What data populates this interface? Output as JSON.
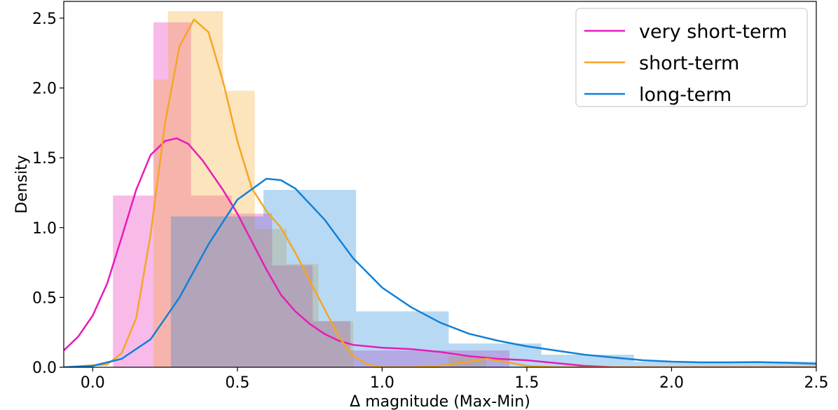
{
  "chart_data": {
    "type": "histogram-kde",
    "xlabel": "Δ magnitude (Max-Min)",
    "ylabel": "Density",
    "xlim": [
      -0.1,
      2.5
    ],
    "ylim": [
      0.0,
      2.62
    ],
    "x_ticks": [
      0.0,
      0.5,
      1.0,
      1.5,
      2.0,
      2.5
    ],
    "y_ticks": [
      0.0,
      0.5,
      1.0,
      1.5,
      2.0,
      2.5
    ],
    "x_tick_labels": [
      "0.0",
      "0.5",
      "1.0",
      "1.5",
      "2.0",
      "2.5"
    ],
    "y_tick_labels": [
      "0.0",
      "0.5",
      "1.0",
      "1.5",
      "2.0",
      "2.5"
    ],
    "grid": false,
    "legend_position": "top-right",
    "series": [
      {
        "name": "very short-term",
        "color": "#e81cb7",
        "hist": [
          {
            "x0": 0.07,
            "x1": 0.21,
            "density": 1.23
          },
          {
            "x0": 0.21,
            "x1": 0.34,
            "density": 2.47
          },
          {
            "x0": 0.34,
            "x1": 0.48,
            "density": 1.23
          },
          {
            "x0": 0.48,
            "x1": 0.62,
            "density": 1.1
          },
          {
            "x0": 0.62,
            "x1": 0.76,
            "density": 0.73
          },
          {
            "x0": 0.76,
            "x1": 0.89,
            "density": 0.33
          },
          {
            "x0": 0.89,
            "x1": 1.03,
            "density": 0.12
          },
          {
            "x0": 1.03,
            "x1": 1.17,
            "density": 0.12
          },
          {
            "x0": 1.17,
            "x1": 1.3,
            "density": 0.12
          },
          {
            "x0": 1.3,
            "x1": 1.44,
            "density": 0.12
          }
        ],
        "kde": [
          [
            -0.1,
            0.12
          ],
          [
            -0.05,
            0.22
          ],
          [
            0.0,
            0.37
          ],
          [
            0.05,
            0.6
          ],
          [
            0.1,
            0.93
          ],
          [
            0.15,
            1.27
          ],
          [
            0.2,
            1.52
          ],
          [
            0.25,
            1.62
          ],
          [
            0.29,
            1.64
          ],
          [
            0.33,
            1.6
          ],
          [
            0.38,
            1.48
          ],
          [
            0.45,
            1.27
          ],
          [
            0.5,
            1.1
          ],
          [
            0.55,
            0.9
          ],
          [
            0.6,
            0.7
          ],
          [
            0.65,
            0.52
          ],
          [
            0.7,
            0.4
          ],
          [
            0.75,
            0.31
          ],
          [
            0.8,
            0.24
          ],
          [
            0.85,
            0.19
          ],
          [
            0.9,
            0.16
          ],
          [
            1.0,
            0.14
          ],
          [
            1.1,
            0.13
          ],
          [
            1.2,
            0.11
          ],
          [
            1.3,
            0.08
          ],
          [
            1.4,
            0.06
          ],
          [
            1.5,
            0.05
          ],
          [
            1.6,
            0.03
          ],
          [
            1.7,
            0.01
          ],
          [
            1.8,
            0.0
          ],
          [
            1.9,
            0.0
          ],
          [
            2.5,
            0.0
          ]
        ]
      },
      {
        "name": "short-term",
        "color": "#f5a623",
        "hist": [
          {
            "x0": 0.21,
            "x1": 0.26,
            "density": 2.06
          },
          {
            "x0": 0.26,
            "x1": 0.45,
            "density": 2.55
          },
          {
            "x0": 0.45,
            "x1": 0.56,
            "density": 1.98
          },
          {
            "x0": 0.56,
            "x1": 0.67,
            "density": 0.99
          },
          {
            "x0": 0.67,
            "x1": 0.78,
            "density": 0.74
          },
          {
            "x0": 0.78,
            "x1": 0.9,
            "density": 0.33
          },
          {
            "x0": 1.23,
            "x1": 1.36,
            "density": 0.08
          }
        ],
        "kde": [
          [
            -0.1,
            0.0
          ],
          [
            0.05,
            0.02
          ],
          [
            0.1,
            0.1
          ],
          [
            0.15,
            0.35
          ],
          [
            0.2,
            0.95
          ],
          [
            0.25,
            1.75
          ],
          [
            0.3,
            2.3
          ],
          [
            0.35,
            2.49
          ],
          [
            0.4,
            2.4
          ],
          [
            0.45,
            2.05
          ],
          [
            0.5,
            1.62
          ],
          [
            0.55,
            1.28
          ],
          [
            0.6,
            1.12
          ],
          [
            0.65,
            1.0
          ],
          [
            0.7,
            0.82
          ],
          [
            0.75,
            0.62
          ],
          [
            0.8,
            0.42
          ],
          [
            0.85,
            0.22
          ],
          [
            0.9,
            0.08
          ],
          [
            0.95,
            0.02
          ],
          [
            1.0,
            0.0
          ],
          [
            1.1,
            0.0
          ],
          [
            1.2,
            0.01
          ],
          [
            1.3,
            0.04
          ],
          [
            1.36,
            0.06
          ],
          [
            1.42,
            0.04
          ],
          [
            1.5,
            0.01
          ],
          [
            1.6,
            0.0
          ],
          [
            2.5,
            0.0
          ]
        ]
      },
      {
        "name": "long-term",
        "color": "#1380d6",
        "hist": [
          {
            "x0": 0.27,
            "x1": 0.59,
            "density": 1.08
          },
          {
            "x0": 0.59,
            "x1": 0.91,
            "density": 1.27
          },
          {
            "x0": 0.91,
            "x1": 1.23,
            "density": 0.4
          },
          {
            "x0": 1.23,
            "x1": 1.55,
            "density": 0.17
          },
          {
            "x0": 1.55,
            "x1": 1.87,
            "density": 0.09
          },
          {
            "x0": 1.87,
            "x1": 2.5,
            "density": 0.04
          }
        ],
        "kde": [
          [
            -0.1,
            0.0
          ],
          [
            0.0,
            0.01
          ],
          [
            0.1,
            0.06
          ],
          [
            0.2,
            0.2
          ],
          [
            0.3,
            0.5
          ],
          [
            0.4,
            0.88
          ],
          [
            0.5,
            1.2
          ],
          [
            0.6,
            1.35
          ],
          [
            0.65,
            1.34
          ],
          [
            0.7,
            1.28
          ],
          [
            0.8,
            1.06
          ],
          [
            0.9,
            0.78
          ],
          [
            1.0,
            0.57
          ],
          [
            1.1,
            0.43
          ],
          [
            1.2,
            0.32
          ],
          [
            1.3,
            0.24
          ],
          [
            1.4,
            0.19
          ],
          [
            1.5,
            0.15
          ],
          [
            1.6,
            0.12
          ],
          [
            1.7,
            0.09
          ],
          [
            1.8,
            0.07
          ],
          [
            1.9,
            0.05
          ],
          [
            2.0,
            0.04
          ],
          [
            2.1,
            0.035
          ],
          [
            2.2,
            0.035
          ],
          [
            2.3,
            0.037
          ],
          [
            2.4,
            0.032
          ],
          [
            2.5,
            0.025
          ]
        ]
      }
    ]
  }
}
